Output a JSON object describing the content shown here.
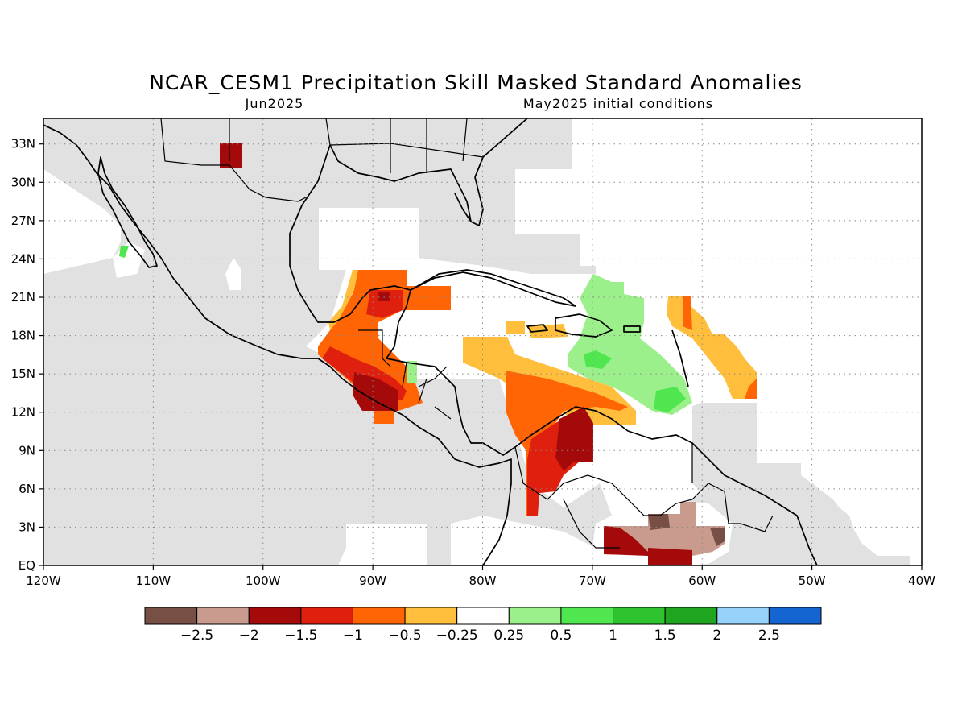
{
  "title": "NCAR_CESM1 Precipitation Skill Masked Standard Anomalies",
  "subtitle_left": "Jun2025",
  "subtitle_right": "May2025 initial conditions",
  "map": {
    "lon_range": [
      -120,
      -40
    ],
    "lat_range": [
      0,
      35
    ],
    "x_ticks": [
      "120W",
      "110W",
      "100W",
      "90W",
      "80W",
      "70W",
      "60W",
      "50W",
      "40W"
    ],
    "y_ticks": [
      "EQ",
      "3N",
      "6N",
      "9N",
      "12N",
      "15N",
      "18N",
      "21N",
      "24N",
      "27N",
      "30N",
      "33N"
    ],
    "grid": "dotted",
    "mask_color": "#e1e1e1"
  },
  "colorbar": {
    "colors": [
      "#784f45",
      "#c99a8e",
      "#a50a0a",
      "#e0200e",
      "#ff6405",
      "#ffbe3c",
      "#ffffff",
      "#9bf08c",
      "#50e650",
      "#30c330",
      "#1fa51f",
      "#96d2fa",
      "#1464d2"
    ],
    "labels": [
      "−2.5",
      "−2",
      "−1.5",
      "−1",
      "−0.5",
      "−0.25",
      "0.25",
      "0.5",
      "1",
      "1.5",
      "2",
      "2.5"
    ]
  },
  "anomaly_regions": [
    {
      "level": "-1.5",
      "color": "#a50a0a",
      "where": "northern Mexico near 31-33N 102-103W"
    },
    {
      "level": "-1",
      "color": "#e0200e",
      "where": "Yucatan / Guatemala / Honduras"
    },
    {
      "level": "-0.5",
      "color": "#ff6405",
      "where": "Yucatan, Gulf of Honduras, southwestern Caribbean"
    },
    {
      "level": "-0.25",
      "color": "#ffbe3c",
      "where": "central Caribbean and east of Lesser Antilles"
    },
    {
      "level": "-1.5",
      "color": "#a50a0a",
      "where": "northern Colombia / Venezuela"
    },
    {
      "level": "0.25",
      "color": "#9bf08c",
      "where": "eastern Caribbean near Puerto Rico"
    },
    {
      "level": "0.5",
      "color": "#50e650",
      "where": "eastern Caribbean cores"
    },
    {
      "level": "-2",
      "color": "#c99a8e",
      "where": "northern Brazil / Guyana"
    },
    {
      "level": "-2.5",
      "color": "#784f45",
      "where": "northern Brazil near 3N 62-64W"
    }
  ]
}
